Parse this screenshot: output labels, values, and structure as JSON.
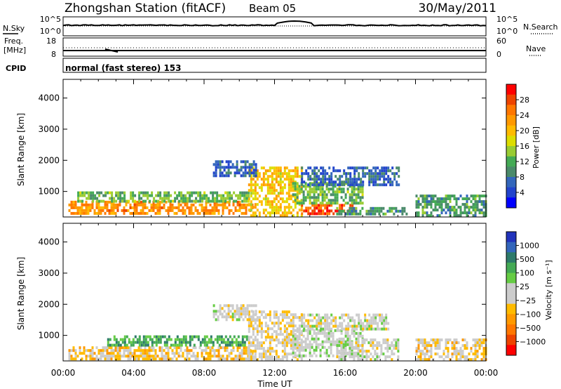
{
  "header": {
    "station": "Zhongshan Station (fitACF)",
    "beam": "Beam 05",
    "date": "30/May/2011"
  },
  "top_panels": {
    "nsky_label": "N.Sky",
    "nsky_ticks": [
      "10^5",
      "10^0"
    ],
    "nsearch_label": "N.Search",
    "nsearch_ticks": [
      "10^5",
      "10^0"
    ],
    "freq_label": [
      "Freq.",
      "[MHz]"
    ],
    "freq_ticks": [
      "18",
      "8"
    ],
    "nave_label": "Nave",
    "nave_ticks": [
      "60",
      "0"
    ],
    "cpid_label": "CPID",
    "cpid_text": "normal (fast stereo) 153"
  },
  "colorbars": {
    "power": {
      "label": "Power [dB]",
      "ticks": [
        "28",
        "24",
        "20",
        "16",
        "12",
        "8",
        "4"
      ],
      "colors": [
        "#ff0000",
        "#ee4400",
        "#ff7700",
        "#ff9900",
        "#ffbb00",
        "#dddd00",
        "#99cc33",
        "#44aa55",
        "#4a8a6a",
        "#3366bb",
        "#2244cc",
        "#0000ff"
      ]
    },
    "velocity": {
      "label": "Velocity [m s⁻¹]",
      "ticks": [
        "1000",
        "500",
        "100",
        "25",
        "−25",
        "−100",
        "−500",
        "−1000"
      ],
      "colors": [
        "#2233bb",
        "#3366bb",
        "#2d7a6a",
        "#44aa55",
        "#66cc44",
        "#cccccc",
        "#cccccc",
        "#ffbb00",
        "#ff9900",
        "#ff7700",
        "#ee4400",
        "#ff0000"
      ]
    }
  },
  "chart_data": [
    {
      "type": "heatmap",
      "title": "Power",
      "ylabel": "Slant Range [km]",
      "ylim": [
        180,
        4600
      ],
      "yticks": [
        "1000",
        "2000",
        "3000",
        "4000"
      ],
      "xlim": [
        "00:00",
        "24:00"
      ],
      "xticks": [
        "00:00",
        "04:00",
        "08:00",
        "12:00",
        "16:00",
        "20:00",
        "00:00"
      ],
      "scale_label": "Power [dB]",
      "scale_range": [
        0,
        30
      ],
      "regions": [
        {
          "t0": 0.3,
          "t1": 10.8,
          "r0": 250,
          "r1": 700,
          "value": 22
        },
        {
          "t0": 0.8,
          "t1": 10.5,
          "r0": 700,
          "r1": 1000,
          "value": 12
        },
        {
          "t0": 10.5,
          "t1": 13.5,
          "r0": 250,
          "r1": 1800,
          "value": 18
        },
        {
          "t0": 13.5,
          "t1": 16.5,
          "r0": 300,
          "r1": 600,
          "value": 26
        },
        {
          "t0": 13.0,
          "t1": 17.0,
          "r0": 600,
          "r1": 1300,
          "value": 12
        },
        {
          "t0": 15.5,
          "t1": 19.5,
          "r0": 250,
          "r1": 500,
          "value": 10
        },
        {
          "t0": 8.5,
          "t1": 11.0,
          "r0": 1500,
          "r1": 2000,
          "value": 6
        },
        {
          "t0": 13.5,
          "t1": 19.0,
          "r0": 1200,
          "r1": 1800,
          "value": 6
        },
        {
          "t0": 20.0,
          "t1": 24.0,
          "r0": 250,
          "r1": 900,
          "value": 10
        }
      ]
    },
    {
      "type": "heatmap",
      "title": "Velocity",
      "ylabel": "Slant Range [km]",
      "ylim": [
        180,
        4600
      ],
      "yticks": [
        "1000",
        "2000",
        "3000",
        "4000"
      ],
      "xlim": [
        "00:00",
        "24:00"
      ],
      "xticks": [
        "00:00",
        "04:00",
        "08:00",
        "12:00",
        "16:00",
        "20:00",
        "00:00"
      ],
      "xlabel": "Time UT",
      "scale_label": "Velocity [m s⁻¹]",
      "scale_range": [
        -1000,
        1000
      ],
      "regions": [
        {
          "t0": 0.3,
          "t1": 10.8,
          "r0": 250,
          "r1": 650,
          "value": -200
        },
        {
          "t0": 2.5,
          "t1": 10.5,
          "r0": 650,
          "r1": 1000,
          "value": 400
        },
        {
          "t0": 10.5,
          "t1": 13.5,
          "r0": 250,
          "r1": 1800,
          "value": -100
        },
        {
          "t0": 13.0,
          "t1": 17.0,
          "r0": 300,
          "r1": 1200,
          "value": 60
        },
        {
          "t0": 15.5,
          "t1": 19.0,
          "r0": 250,
          "r1": 900,
          "value": 0
        },
        {
          "t0": 8.5,
          "t1": 11.0,
          "r0": 1500,
          "r1": 2000,
          "value": 0
        },
        {
          "t0": 13.5,
          "t1": 18.5,
          "r0": 1200,
          "r1": 1700,
          "value": 0
        },
        {
          "t0": 20.0,
          "t1": 24.0,
          "r0": 250,
          "r1": 900,
          "value": -150
        }
      ]
    }
  ]
}
